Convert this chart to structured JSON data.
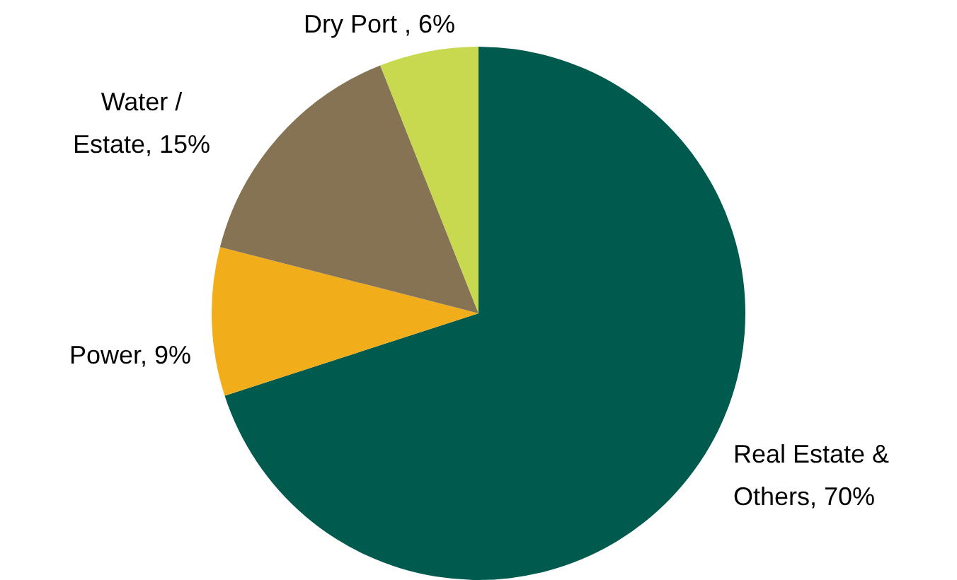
{
  "chart_data": {
    "type": "pie",
    "categories": [
      "Real Estate & Others",
      "Power",
      "Water / Estate",
      "Dry Port "
    ],
    "values": [
      70,
      9,
      15,
      6
    ],
    "value_labels": [
      "70%",
      "9%",
      "15%",
      "6%"
    ],
    "colors": [
      "#005a4e",
      "#f2ad1a",
      "#857354",
      "#c8d94f"
    ],
    "legend": false
  }
}
